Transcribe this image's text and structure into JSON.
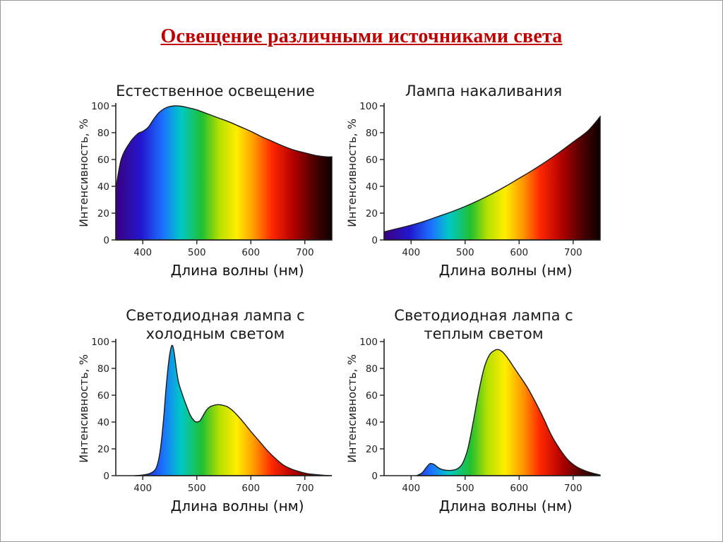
{
  "slide": {
    "title": "Освещение различными источниками света"
  },
  "colors": {
    "title": "#c00000",
    "spectrum": [
      "#3a0080",
      "#2218d0",
      "#1b73ff",
      "#00c8c8",
      "#20c030",
      "#b8e000",
      "#ffee00",
      "#ff9a00",
      "#ff2a00",
      "#b50000",
      "#4a0000",
      "#0d0000"
    ]
  },
  "chart_data": [
    {
      "type": "area",
      "title_lines": [
        "Естественное освещение"
      ],
      "xlabel": "Длина волны (нм)",
      "ylabel": "Интенсивность, %",
      "xlim": [
        350,
        750
      ],
      "ylim": [
        0,
        100
      ],
      "xticks": [
        400,
        500,
        600,
        700
      ],
      "yticks": [
        0,
        20,
        40,
        60,
        80,
        100
      ],
      "x": [
        350,
        360,
        375,
        390,
        400,
        410,
        420,
        430,
        440,
        450,
        460,
        470,
        480,
        500,
        520,
        540,
        560,
        580,
        600,
        620,
        640,
        660,
        680,
        700,
        720,
        740,
        750
      ],
      "y": [
        38,
        60,
        72,
        79,
        81,
        84,
        90,
        95,
        98,
        99.5,
        100,
        99.8,
        99,
        97,
        94,
        91,
        88,
        84.5,
        81,
        77,
        73.5,
        70,
        67,
        65,
        63,
        62,
        62
      ]
    },
    {
      "type": "area",
      "title_lines": [
        "Лампа накаливания"
      ],
      "xlabel": "Длина волны (нм)",
      "ylabel": "Интенсивность, %",
      "xlim": [
        350,
        750
      ],
      "ylim": [
        0,
        100
      ],
      "xticks": [
        400,
        500,
        600,
        700
      ],
      "yticks": [
        0,
        20,
        40,
        60,
        80,
        100
      ],
      "x": [
        350,
        375,
        400,
        425,
        450,
        475,
        500,
        525,
        550,
        575,
        600,
        625,
        650,
        675,
        700,
        725,
        740,
        750
      ],
      "y": [
        6,
        8.5,
        11,
        14,
        17.5,
        21,
        25,
        29.5,
        34.5,
        40,
        46,
        52,
        58.5,
        65.5,
        73,
        80.5,
        87,
        92
      ]
    },
    {
      "type": "area",
      "title_lines": [
        "Светодиодная лампа с",
        "холодным светом"
      ],
      "xlabel": "Длина волны (нм)",
      "ylabel": "Интенсивность, %",
      "xlim": [
        350,
        750
      ],
      "ylim": [
        0,
        100
      ],
      "xticks": [
        400,
        500,
        600,
        700
      ],
      "yticks": [
        0,
        20,
        40,
        60,
        80,
        100
      ],
      "x": [
        385,
        400,
        415,
        425,
        432,
        438,
        443,
        448,
        452,
        455,
        458,
        462,
        466,
        472,
        480,
        488,
        495,
        500,
        506,
        512,
        518,
        525,
        532,
        540,
        548,
        556,
        565,
        575,
        588,
        600,
        615,
        630,
        645,
        660,
        675,
        690,
        705,
        720,
        735,
        750
      ],
      "y": [
        0,
        0.5,
        2,
        6,
        18,
        40,
        65,
        85,
        95,
        97,
        92,
        80,
        70,
        62,
        53,
        45,
        41,
        40,
        41,
        45,
        49,
        51.5,
        52.5,
        53,
        52.5,
        51.5,
        49,
        45,
        39,
        33,
        26,
        19,
        13,
        8,
        5,
        3,
        1.5,
        0.8,
        0.3,
        0
      ]
    },
    {
      "type": "area",
      "title_lines": [
        "Светодиодная лампа с",
        "теплым светом"
      ],
      "xlabel": "Длина волны (нм)",
      "ylabel": "Интенсивность, %",
      "xlim": [
        350,
        750
      ],
      "ylim": [
        0,
        100
      ],
      "xticks": [
        400,
        500,
        600,
        700
      ],
      "yticks": [
        0,
        20,
        40,
        60,
        80,
        100
      ],
      "x": [
        410,
        420,
        428,
        435,
        442,
        450,
        458,
        466,
        475,
        485,
        495,
        505,
        515,
        525,
        535,
        545,
        555,
        562,
        570,
        580,
        590,
        600,
        615,
        630,
        645,
        660,
        675,
        690,
        705,
        720,
        735,
        750
      ],
      "y": [
        0,
        2,
        6,
        9,
        8.5,
        6,
        4.5,
        4,
        4,
        5,
        9,
        20,
        40,
        62,
        80,
        90,
        93.5,
        94,
        92,
        87,
        81,
        75,
        66,
        55,
        43,
        30,
        20,
        12,
        7,
        4,
        2,
        0.5
      ]
    }
  ]
}
